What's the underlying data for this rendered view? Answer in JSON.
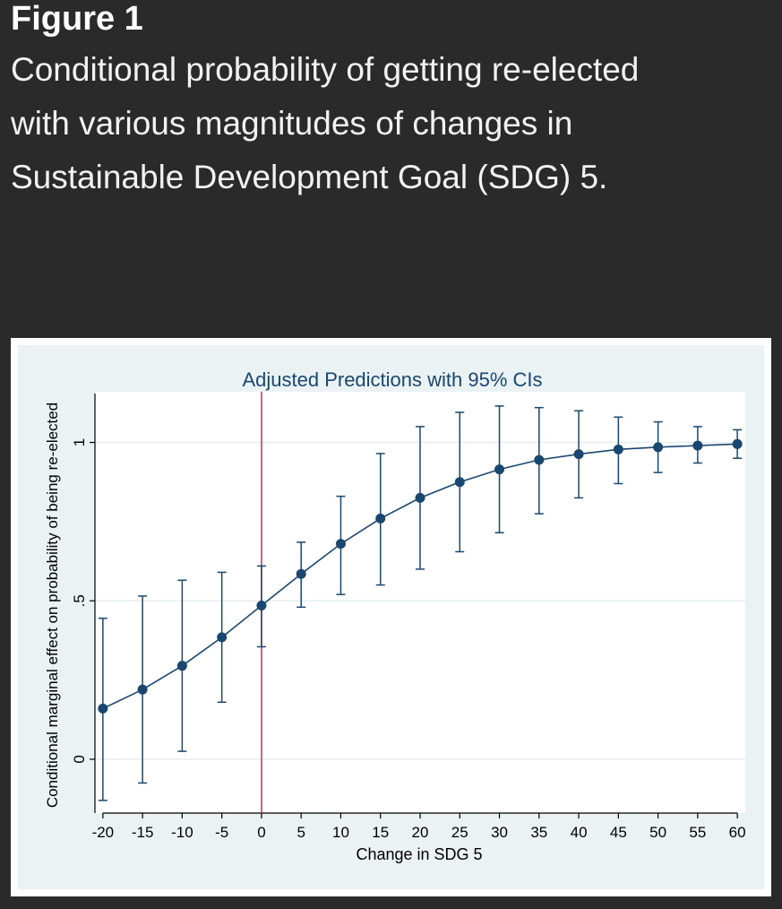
{
  "page": {
    "figure_label": "Figure 1",
    "caption": "Conditional probability of getting re-elected with various magnitudes of changes in Sustainable Development Goal (SDG) 5."
  },
  "colors": {
    "page_background": "#2a2a2b",
    "plot_region": "#eaf2f3",
    "series": "#1a476f",
    "reference_line": "#d0405a",
    "grid": "#ffffff"
  },
  "chart_data": {
    "type": "line",
    "title": "Adjusted Predictions with 95% CIs",
    "xlabel": "Change in SDG 5",
    "ylabel": "Conditional marginal effect on probability of being re-elected",
    "x": [
      -20,
      -15,
      -10,
      -5,
      0,
      5,
      10,
      15,
      20,
      25,
      30,
      35,
      40,
      45,
      50,
      55,
      60
    ],
    "x_tick_labels": [
      "-20",
      "-15",
      "-10",
      "-5",
      "0",
      "5",
      "10",
      "15",
      "20",
      "25",
      "30",
      "35",
      "40",
      "45",
      "50",
      "55",
      "60"
    ],
    "y_ticks": [
      0,
      0.5,
      1
    ],
    "y_tick_labels": [
      "0",
      ".5",
      "1"
    ],
    "xlim": [
      -21,
      61
    ],
    "ylim": [
      -0.17,
      1.16
    ],
    "grid": true,
    "series": [
      {
        "values": [
          0.16,
          0.22,
          0.295,
          0.385,
          0.485,
          0.585,
          0.68,
          0.76,
          0.825,
          0.875,
          0.915,
          0.945,
          0.963,
          0.978,
          0.985,
          0.99,
          0.995
        ],
        "lower": [
          -0.13,
          -0.075,
          0.025,
          0.18,
          0.355,
          0.48,
          0.52,
          0.55,
          0.6,
          0.655,
          0.715,
          0.775,
          0.825,
          0.87,
          0.905,
          0.935,
          0.95
        ],
        "upper": [
          0.445,
          0.515,
          0.565,
          0.59,
          0.61,
          0.685,
          0.83,
          0.965,
          1.05,
          1.095,
          1.115,
          1.11,
          1.1,
          1.08,
          1.065,
          1.05,
          1.04
        ]
      }
    ],
    "reference_line_x": 0
  }
}
